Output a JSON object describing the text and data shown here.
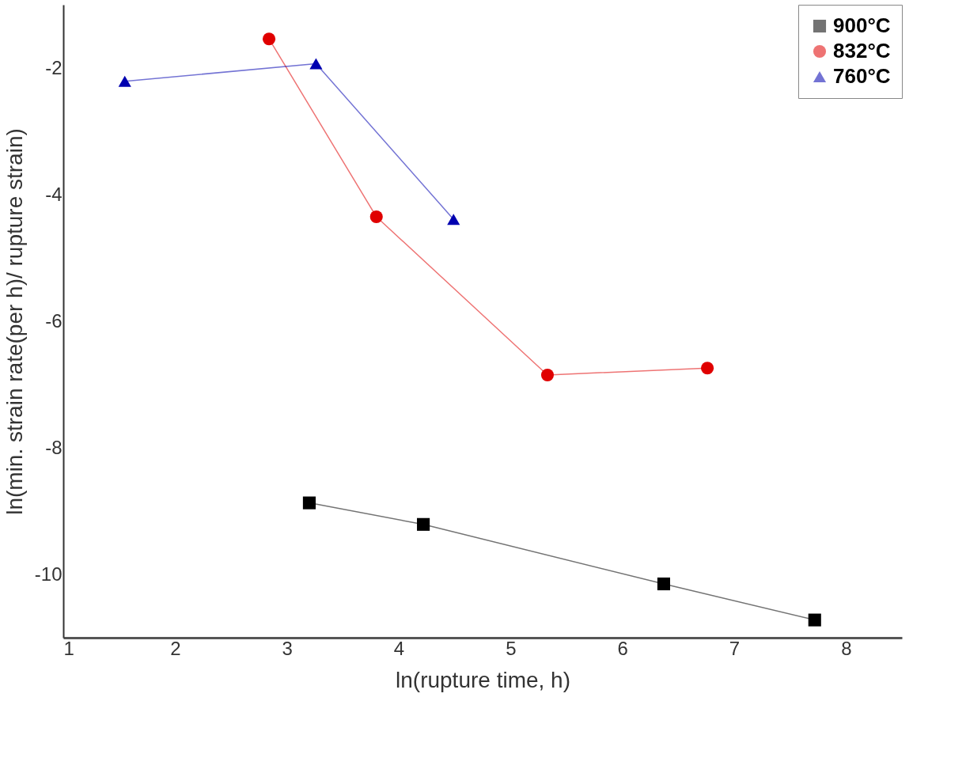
{
  "chart_data": {
    "type": "line",
    "xlabel": "ln(rupture time, h)",
    "ylabel": "ln(min. strain rate(per h)/ rupture strain)",
    "xlim": [
      1,
      8.5
    ],
    "xticks": [
      1,
      2,
      3,
      4,
      5,
      6,
      7,
      8
    ],
    "ylim": [
      -11,
      -1
    ],
    "yticks": [
      -2,
      -4,
      -6,
      -8,
      -10
    ],
    "grid": false,
    "legend": "top right",
    "series": [
      {
        "name": "900°C",
        "color": "#000000",
        "marker": "square",
        "x": [
          3.2,
          4.22,
          6.37,
          7.72
        ],
        "values": [
          -8.87,
          -9.21,
          -10.15,
          -10.72
        ]
      },
      {
        "name": "832°C",
        "color": "#e00000",
        "marker": "circle",
        "x": [
          2.84,
          3.8,
          5.33,
          6.76
        ],
        "values": [
          -1.54,
          -4.35,
          -6.85,
          -6.74
        ]
      },
      {
        "name": "760°C",
        "color": "#0000b0",
        "marker": "triangle",
        "x": [
          1.55,
          3.26,
          4.49
        ],
        "values": [
          -2.21,
          -1.93,
          -4.39
        ]
      }
    ]
  }
}
